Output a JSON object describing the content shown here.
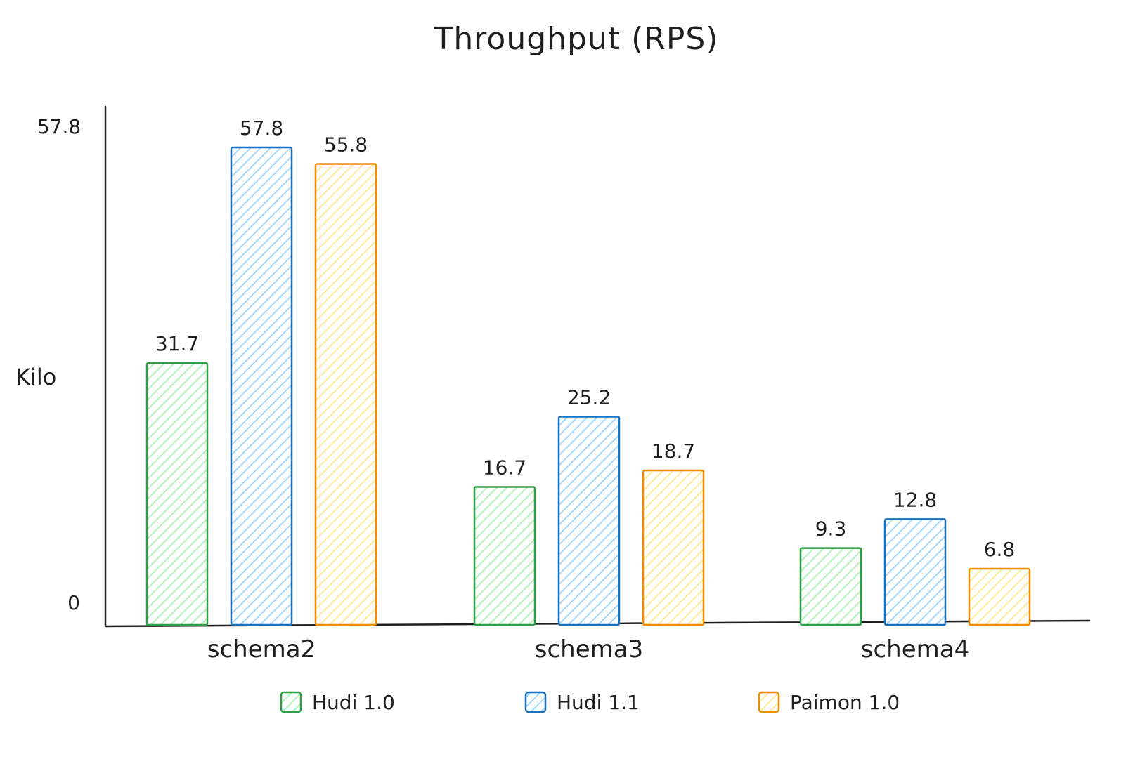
{
  "chart_data": {
    "type": "bar",
    "title": "Throughput (RPS)",
    "xlabel": "",
    "ylabel": "Kilo",
    "ylim": [
      0,
      57.8
    ],
    "y_ticks": [
      "0",
      "57.8"
    ],
    "categories": [
      "schema2",
      "schema3",
      "schema4"
    ],
    "series": [
      {
        "name": "Hudi 1.0",
        "color": "#2f9e44",
        "fill": "#b2f2bb",
        "values": [
          31.7,
          16.7,
          9.3
        ],
        "labels": [
          "31.7",
          "16.7",
          "9.3"
        ]
      },
      {
        "name": "Hudi 1.1",
        "color": "#1971c2",
        "fill": "#a5d8ff",
        "values": [
          57.8,
          25.2,
          12.8
        ],
        "labels": [
          "57.8",
          "25.2",
          "12.8"
        ]
      },
      {
        "name": "Paimon 1.0",
        "color": "#f08c00",
        "fill": "#ffec99",
        "values": [
          55.8,
          18.7,
          6.8
        ],
        "labels": [
          "55.8",
          "18.7",
          "6.8"
        ]
      }
    ],
    "grid": false,
    "legend_position": "bottom",
    "style": "hand-drawn with hatched fills"
  }
}
